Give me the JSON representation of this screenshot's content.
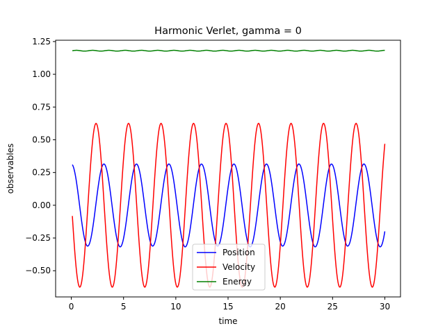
{
  "chart_data": {
    "type": "line",
    "title": "Harmonic Verlet, gamma = 0",
    "xlabel": "time",
    "ylabel": "observables",
    "xlim": [
      -1.5,
      31.5
    ],
    "ylim": [
      -0.7,
      1.26
    ],
    "x_ticks": [
      0,
      5,
      10,
      15,
      20,
      25,
      30
    ],
    "x_tick_labels": [
      "0",
      "5",
      "10",
      "15",
      "20",
      "25",
      "30"
    ],
    "y_ticks": [
      -0.5,
      -0.25,
      0.0,
      0.25,
      0.5,
      0.75,
      1.0,
      1.25
    ],
    "y_tick_labels": [
      "−0.50",
      "−0.25",
      "0.00",
      "0.25",
      "0.50",
      "0.75",
      "1.00",
      "1.25"
    ],
    "grid": false,
    "legend_position": "lower center",
    "time_range": [
      0.1,
      30.0
    ],
    "series": [
      {
        "name": "Position",
        "color": "#0000ff",
        "model": "amplitude 0.315 oscillation, period ≈ 3.11, starting at 0.31",
        "amplitude": 0.315,
        "period": 3.11,
        "start_value": 0.31
      },
      {
        "name": "Velocity",
        "color": "#ff0000",
        "model": "amplitude 0.63 oscillation, period ≈ 3.11, starting at -0.08",
        "amplitude": 0.63,
        "period": 3.11,
        "start_value": -0.08
      },
      {
        "name": "Energy",
        "color": "#008000",
        "model": "nearly constant ≈ 1.18 with small ripple",
        "mean": 1.18,
        "ripple": 0.003
      }
    ]
  }
}
